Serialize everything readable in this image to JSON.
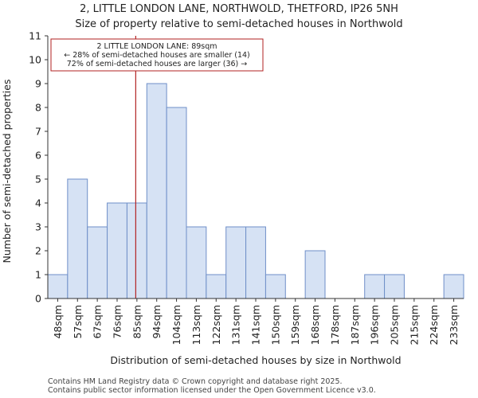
{
  "chart_data": {
    "type": "bar",
    "title": "2, LITTLE LONDON LANE, NORTHWOLD, THETFORD, IP26 5NH",
    "subtitle": "Size of property relative to semi-detached houses in Northwold",
    "xlabel": "Distribution of semi-detached houses by size in Northwold",
    "ylabel": "Number of semi-detached properties",
    "categories": [
      "48sqm",
      "57sqm",
      "67sqm",
      "76sqm",
      "85sqm",
      "94sqm",
      "104sqm",
      "113sqm",
      "122sqm",
      "131sqm",
      "141sqm",
      "150sqm",
      "159sqm",
      "168sqm",
      "178sqm",
      "187sqm",
      "196sqm",
      "205sqm",
      "215sqm",
      "224sqm",
      "233sqm"
    ],
    "values": [
      1,
      5,
      3,
      4,
      4,
      9,
      8,
      3,
      1,
      3,
      3,
      1,
      0,
      2,
      0,
      0,
      1,
      1,
      0,
      0,
      1
    ],
    "ylim": [
      0,
      11
    ],
    "yticks": [
      0,
      1,
      2,
      3,
      4,
      5,
      6,
      7,
      8,
      9,
      10,
      11
    ],
    "grid": false,
    "bar_color": "#d6e2f4",
    "bar_edge_color": "#6f8fc8",
    "marker": {
      "value_sqm": 89,
      "bin_fraction": 0.44,
      "color": "#b22222"
    },
    "annotation": {
      "lines": [
        "2 LITTLE LONDON LANE: 89sqm",
        "← 28% of semi-detached houses are smaller (14)",
        "72% of semi-detached houses are larger (36) →"
      ],
      "border_color": "#b22222"
    }
  },
  "footer": {
    "line1": "Contains HM Land Registry data © Crown copyright and database right 2025.",
    "line2": "Contains public sector information licensed under the Open Government Licence v3.0."
  }
}
